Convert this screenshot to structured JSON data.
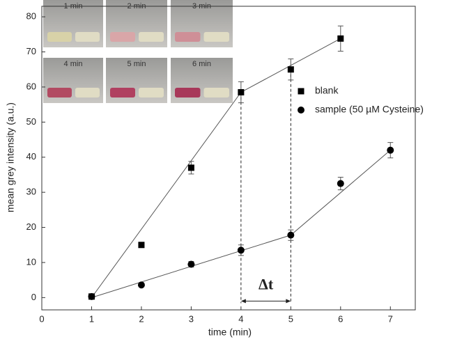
{
  "chart_data": {
    "type": "scatter",
    "xlabel": "time (min)",
    "ylabel": "mean grey intensity (a.u.)",
    "xlim": [
      0,
      7.5
    ],
    "ylim": [
      -3.5,
      83
    ],
    "xticks": [
      0,
      1,
      2,
      3,
      4,
      5,
      6,
      7
    ],
    "yticks": [
      0,
      10,
      20,
      30,
      40,
      50,
      60,
      70,
      80
    ],
    "legend": "right",
    "series": [
      {
        "name": "blank",
        "marker": "square",
        "color": "#000000",
        "x": [
          1,
          2,
          3,
          4,
          5,
          6
        ],
        "values": [
          0.3,
          15,
          37,
          58.5,
          65,
          73.8
        ],
        "errors": [
          0.5,
          0.3,
          1.8,
          3,
          3,
          3.6
        ]
      },
      {
        "name": "sample (50 µM Cysteine)",
        "marker": "circle",
        "color": "#000000",
        "x": [
          1,
          2,
          3,
          4,
          5,
          6,
          7
        ],
        "values": [
          0.3,
          3.6,
          9.5,
          13.5,
          17.8,
          32.5,
          42
        ],
        "errors": [
          0.4,
          0.4,
          0.8,
          1.5,
          1.5,
          1.8,
          2.2
        ]
      }
    ],
    "fit_lines": [
      {
        "x": [
          1,
          4,
          6
        ],
        "y": [
          0,
          58.5,
          73.8
        ]
      },
      {
        "x": [
          1,
          5,
          7
        ],
        "y": [
          0,
          17.8,
          42
        ]
      }
    ],
    "annotation": {
      "text": "Δt",
      "x": [
        4,
        5
      ]
    },
    "inset_labels": [
      "1 min",
      "2 min",
      "3 min",
      "4 min",
      "5 min",
      "6 min"
    ]
  }
}
